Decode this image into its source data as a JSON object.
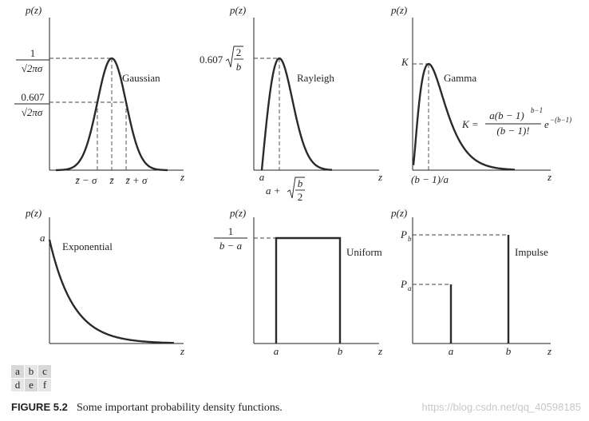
{
  "panels": [
    {
      "y_label": "p(z)",
      "x_label": "z",
      "name": "Gaussian",
      "y_annotations": [
        {
          "numerator": "1",
          "denominator": "√2πσ"
        },
        {
          "numerator": "0.607",
          "denominator": "√2πσ"
        }
      ],
      "x_annotations": [
        "z̄ − σ",
        "z̄",
        "z̄ + σ"
      ]
    },
    {
      "y_label": "p(z)",
      "x_label": "z",
      "name": "Rayleigh",
      "y_annotation": {
        "coefficient": "0.607",
        "numerator": "2",
        "denominator": "b"
      },
      "x_annotations": [
        "a",
        "a +"
      ],
      "x_root": {
        "numerator": "b",
        "denominator": "2"
      }
    },
    {
      "y_label": "p(z)",
      "x_label": "z",
      "name": "Gamma",
      "y_annotation": "K",
      "x_annotation": "(b − 1)/a",
      "formula": {
        "lhs": "K =",
        "numerator": "a(b − 1)",
        "exponent": "b−1",
        "denominator": "(b − 1)!",
        "base": "e",
        "base_exponent": "−(b−1)"
      }
    },
    {
      "y_label": "p(z)",
      "x_label": "z",
      "name": "Exponential",
      "y_annotation": "a"
    },
    {
      "y_label": "p(z)",
      "x_label": "z",
      "name": "Uniform",
      "y_annotation": {
        "numerator": "1",
        "denominator": "b − a"
      },
      "x_annotations": [
        "a",
        "b"
      ]
    },
    {
      "y_label": "p(z)",
      "x_label": "z",
      "name": "Impulse",
      "y_annotations": [
        {
          "symbol": "P",
          "subscript": "b"
        },
        {
          "symbol": "P",
          "subscript": "a"
        }
      ],
      "x_annotations": [
        "a",
        "b"
      ]
    }
  ],
  "panel_letters": [
    [
      "a",
      "b",
      "c"
    ],
    [
      "d",
      "e",
      "f"
    ]
  ],
  "caption": {
    "label": "FIGURE 5.2",
    "text": "Some important probability density functions."
  },
  "watermark": "https://blog.csdn.net/qq_40598185"
}
